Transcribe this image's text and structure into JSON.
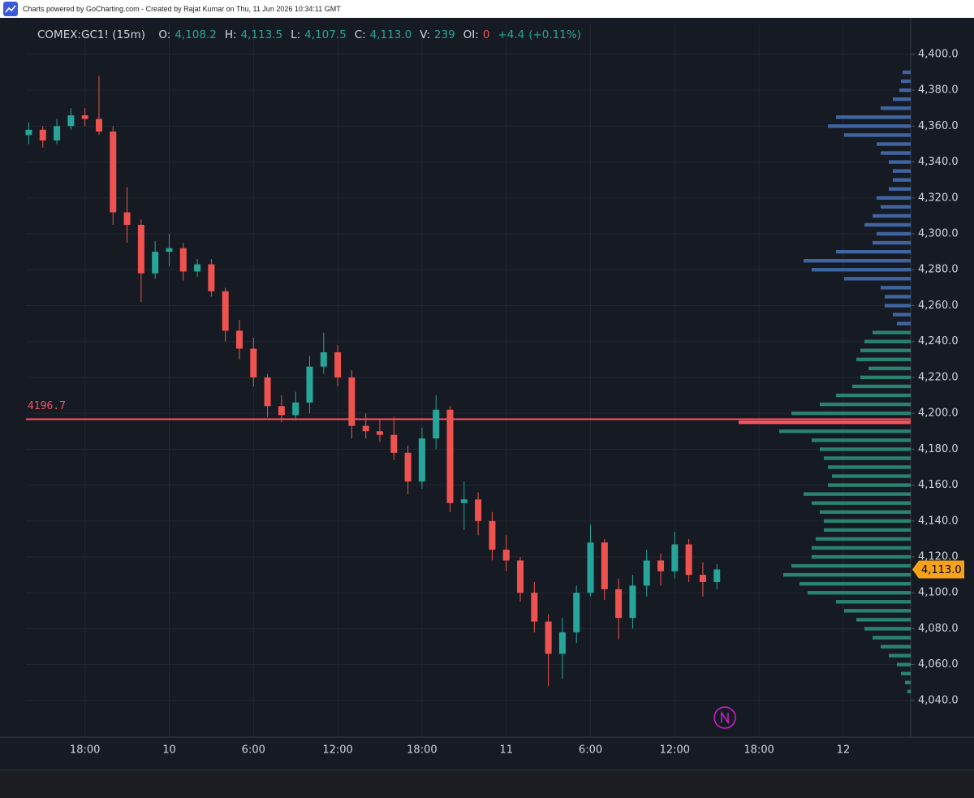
{
  "header": {
    "credit": "Charts powered by GoCharting.com - Created by Rajat Kumar on Thu, 11 Jun 2026 10:34:11 GMT"
  },
  "chart_data": {
    "type": "candlestick",
    "legend": {
      "symbol": "COMEX:GC1! (15m)",
      "up_color": "#26a69a",
      "down_color": "#ef5350",
      "items": [
        {
          "label": "O:",
          "value": "4,108.2"
        },
        {
          "label": "H:",
          "value": "4,113.5"
        },
        {
          "label": "L:",
          "value": "4,107.5"
        },
        {
          "label": "C:",
          "value": "4,113.0"
        },
        {
          "label": "V:",
          "value": "239"
        },
        {
          "label": "OI:",
          "value": "0",
          "down": true
        }
      ],
      "change": "+4.4",
      "change_pct": "(+0.11%)"
    },
    "x": [
      -10,
      -9,
      -8,
      -7,
      -6,
      -5,
      -4,
      -3,
      -2,
      -1,
      0,
      1,
      2,
      3,
      4,
      5,
      6,
      7,
      8,
      9,
      10,
      11,
      12,
      13,
      14,
      15,
      16,
      17,
      18,
      19,
      20,
      21,
      22,
      23,
      24,
      25,
      26,
      27,
      28,
      29,
      30,
      31,
      32,
      33,
      34,
      35,
      36,
      37,
      38,
      39
    ],
    "open": [
      4355,
      4358,
      4352,
      4360,
      4366,
      4364,
      4357,
      4312,
      4305,
      4278,
      4290,
      4292,
      4279,
      4283,
      4268,
      4246,
      4236,
      4220,
      4204,
      4199,
      4206,
      4226,
      4234,
      4220,
      4193,
      4190,
      4188,
      4178,
      4162,
      4186,
      4202,
      4150,
      4152,
      4140,
      4124,
      4118,
      4100,
      4084,
      4066,
      4078,
      4100,
      4128,
      4102,
      4086,
      4104,
      4118,
      4112,
      4127,
      4110,
      4106
    ],
    "high": [
      4362,
      4360,
      4364,
      4370,
      4370,
      4388,
      4360,
      4326,
      4308,
      4296,
      4300,
      4295,
      4286,
      4286,
      4270,
      4252,
      4242,
      4222,
      4210,
      4212,
      4232,
      4245,
      4238,
      4224,
      4200,
      4197,
      4198,
      4182,
      4192,
      4210,
      4204,
      4162,
      4156,
      4145,
      4132,
      4120,
      4106,
      4088,
      4086,
      4104,
      4138,
      4130,
      4108,
      4110,
      4124,
      4122,
      4134,
      4130,
      4117,
      4116
    ],
    "low": [
      4350,
      4348,
      4350,
      4358,
      4360,
      4355,
      4305,
      4295,
      4262,
      4275,
      4282,
      4274,
      4276,
      4265,
      4240,
      4230,
      4215,
      4198,
      4195,
      4196,
      4200,
      4222,
      4215,
      4186,
      4186,
      4184,
      4174,
      4155,
      4158,
      4180,
      4145,
      4135,
      4132,
      4118,
      4112,
      4095,
      4078,
      4048,
      4052,
      4072,
      4098,
      4096,
      4074,
      4080,
      4098,
      4104,
      4108,
      4106,
      4098,
      4102
    ],
    "close": [
      4358,
      4352,
      4360,
      4366,
      4364,
      4357,
      4312,
      4305,
      4278,
      4290,
      4292,
      4279,
      4283,
      4268,
      4246,
      4236,
      4220,
      4204,
      4199,
      4206,
      4226,
      4234,
      4220,
      4193,
      4190,
      4188,
      4178,
      4162,
      4186,
      4202,
      4150,
      4152,
      4140,
      4124,
      4118,
      4100,
      4084,
      4066,
      4078,
      4100,
      4128,
      4102,
      4086,
      4104,
      4118,
      4112,
      4127,
      4110,
      4106,
      4113
    ],
    "xlim": [
      -10.2,
      52.8
    ],
    "xticks": [
      {
        "value": -6,
        "label": "18:00"
      },
      {
        "value": 0,
        "label": "10"
      },
      {
        "value": 6,
        "label": "6:00"
      },
      {
        "value": 12,
        "label": "12:00"
      },
      {
        "value": 18,
        "label": "18:00"
      },
      {
        "value": 24,
        "label": "11"
      },
      {
        "value": 30,
        "label": "6:00"
      },
      {
        "value": 36,
        "label": "12:00"
      },
      {
        "value": 42,
        "label": "18:00"
      },
      {
        "value": 48,
        "label": "12"
      }
    ],
    "ylim": [
      4019.6,
      4416.7
    ],
    "yticks": [
      {
        "value": 4040,
        "label": "4,040.0"
      },
      {
        "value": 4060,
        "label": "4,060.0"
      },
      {
        "value": 4080,
        "label": "4,080.0"
      },
      {
        "value": 4100,
        "label": "4,100.0"
      },
      {
        "value": 4120,
        "label": "4,120.0"
      },
      {
        "value": 4140,
        "label": "4,140.0"
      },
      {
        "value": 4160,
        "label": "4,160.0"
      },
      {
        "value": 4180,
        "label": "4,180.0"
      },
      {
        "value": 4200,
        "label": "4,200.0"
      },
      {
        "value": 4220,
        "label": "4,220.0"
      },
      {
        "value": 4240,
        "label": "4,240.0"
      },
      {
        "value": 4260,
        "label": "4,260.0"
      },
      {
        "value": 4280,
        "label": "4,280.0"
      },
      {
        "value": 4300,
        "label": "4,300.0"
      },
      {
        "value": 4320,
        "label": "4,320.0"
      },
      {
        "value": 4340,
        "label": "4,340.0"
      },
      {
        "value": 4360,
        "label": "4,360.0"
      },
      {
        "value": 4380,
        "label": "4,380.0"
      },
      {
        "value": 4400,
        "label": "4,400.0"
      }
    ],
    "grid": true,
    "poc_line": {
      "value": 4196.7,
      "color": "#f7525f"
    },
    "last_price": {
      "value": 4113.0,
      "label": "4,113.0",
      "color": "#f7a21b"
    },
    "volume_profile": {
      "upper": {
        "color": "#3f64a0",
        "prices": [
          4390,
          4385,
          4380,
          4375,
          4370,
          4365,
          4360,
          4355,
          4350,
          4345,
          4340,
          4335,
          4330,
          4325,
          4320,
          4315,
          4310,
          4305,
          4300,
          4295,
          4290,
          4285,
          4280,
          4275,
          4270,
          4265,
          4260,
          4255,
          4250
        ],
        "volumes": [
          10,
          12,
          14,
          22,
          37,
          92,
          102,
          82,
          42,
          37,
          27,
          22,
          22,
          27,
          42,
          37,
          47,
          57,
          42,
          47,
          92,
          132,
          122,
          82,
          37,
          32,
          32,
          22,
          17
        ]
      },
      "lower": {
        "color": "#2a8270",
        "prices": [
          4245,
          4240,
          4235,
          4230,
          4225,
          4220,
          4215,
          4210,
          4205,
          4200,
          4195,
          4190,
          4185,
          4180,
          4175,
          4170,
          4165,
          4160,
          4155,
          4150,
          4145,
          4140,
          4135,
          4130,
          4125,
          4120,
          4115,
          4110,
          4105,
          4100,
          4095,
          4090,
          4085,
          4080,
          4075,
          4070,
          4065,
          4060,
          4055,
          4050,
          4045
        ],
        "volumes": [
          47,
          57,
          62,
          67,
          52,
          62,
          72,
          92,
          112,
          147,
          212,
          162,
          122,
          112,
          107,
          102,
          97,
          102,
          132,
          122,
          112,
          107,
          107,
          117,
          122,
          122,
          147,
          157,
          137,
          127,
          92,
          82,
          67,
          57,
          47,
          37,
          27,
          17,
          12,
          7,
          4
        ]
      }
    }
  }
}
